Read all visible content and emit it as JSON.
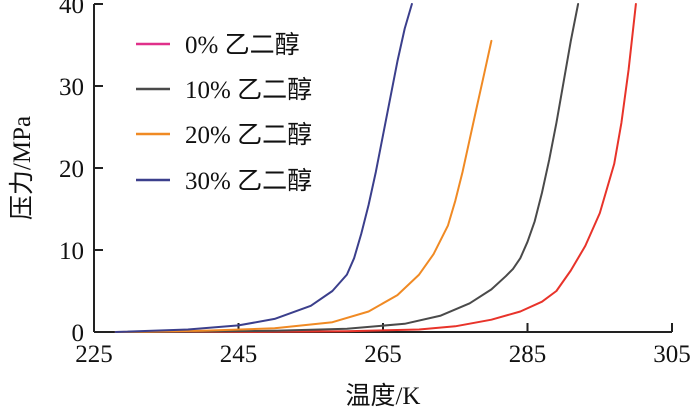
{
  "chart_data": {
    "type": "line",
    "title": "",
    "xlabel": "温度/K",
    "ylabel": "压力/MPa",
    "xlim": [
      225,
      305
    ],
    "ylim": [
      0,
      40
    ],
    "xticks": [
      225,
      245,
      265,
      285,
      305
    ],
    "yticks": [
      0,
      10,
      20,
      30,
      40
    ],
    "grid": false,
    "legend_position": "top-left",
    "series": [
      {
        "name": "0% 乙二醇",
        "color": "#e8332a",
        "x": [
          228,
          240,
          250,
          260,
          270,
          275,
          280,
          284,
          287,
          289,
          291,
          293,
          295,
          297,
          298,
          299,
          300
        ],
        "y": [
          0.0,
          0.0,
          0.03,
          0.1,
          0.3,
          0.7,
          1.5,
          2.5,
          3.7,
          5.0,
          7.5,
          10.5,
          14.5,
          20.5,
          25.5,
          32,
          40
        ]
      },
      {
        "name": "10% 乙二醇",
        "color": "#4a4a4a",
        "x": [
          228,
          240,
          250,
          260,
          268,
          273,
          277,
          280,
          282,
          283,
          284,
          285,
          286,
          287,
          288,
          289,
          290,
          291,
          292
        ],
        "y": [
          0.0,
          0.05,
          0.15,
          0.4,
          1.0,
          2.0,
          3.5,
          5.2,
          6.8,
          7.7,
          9.0,
          11,
          13.5,
          17,
          21,
          25.5,
          30.5,
          35.5,
          40
        ]
      },
      {
        "name": "20% 乙二醇",
        "color": "#f08a24",
        "x": [
          228,
          240,
          250,
          258,
          263,
          267,
          270,
          272,
          274,
          275,
          276,
          277,
          278,
          279,
          280
        ],
        "y": [
          0.0,
          0.15,
          0.45,
          1.2,
          2.5,
          4.5,
          7.0,
          9.5,
          13,
          16,
          19.5,
          23.5,
          27.5,
          31.5,
          35.5
        ]
      },
      {
        "name": "30% 乙二醇",
        "color": "#3b3f8c",
        "x": [
          228,
          238,
          245,
          250,
          255,
          258,
          260,
          261,
          262,
          263,
          264,
          265,
          266,
          267,
          268,
          269
        ],
        "y": [
          0.0,
          0.3,
          0.8,
          1.6,
          3.2,
          5.0,
          7.0,
          9.0,
          12,
          15.5,
          19.5,
          24,
          28.5,
          33,
          37,
          40
        ]
      }
    ]
  }
}
